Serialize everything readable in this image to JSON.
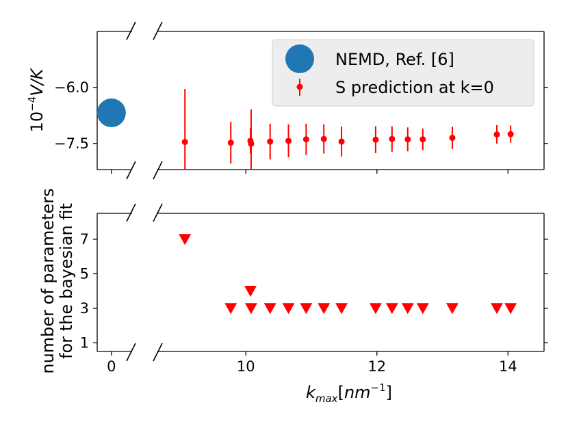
{
  "chart_data": [
    {
      "type": "scatter",
      "panel": "top",
      "ylabel_prefix": "10",
      "ylabel_exponent": "−4",
      "ylabel_main": "V/K",
      "ylim": [
        -8.2,
        -4.5
      ],
      "yticks": [
        -6.0,
        -7.5
      ],
      "ytick_labels": [
        "−6.0",
        "−7.5"
      ],
      "series": [
        {
          "name": "NEMD, Ref. [6]",
          "color": "#1f77b4",
          "x": [
            0
          ],
          "y": [
            -6.68
          ]
        },
        {
          "name": "S prediction at k=0",
          "color": "#ff0000",
          "x": [
            9.07,
            9.77,
            10.07,
            10.08,
            10.37,
            10.65,
            10.92,
            11.19,
            11.46,
            11.98,
            12.23,
            12.47,
            12.7,
            13.15,
            13.83,
            14.04
          ],
          "y": [
            -7.46,
            -7.48,
            -7.43,
            -7.51,
            -7.45,
            -7.43,
            -7.39,
            -7.38,
            -7.45,
            -7.4,
            -7.38,
            -7.39,
            -7.39,
            -7.35,
            -7.26,
            -7.25
          ],
          "yerr": [
            1.42,
            0.56,
            0.34,
            0.92,
            0.48,
            0.44,
            0.42,
            0.39,
            0.4,
            0.36,
            0.34,
            0.32,
            0.29,
            0.3,
            0.25,
            0.23
          ]
        }
      ],
      "legend": {
        "location": "top-right",
        "entries": [
          "NEMD, Ref. [6]",
          "S prediction at k=0"
        ]
      }
    },
    {
      "type": "scatter",
      "panel": "bottom",
      "ylabel_line1": "number of parameters",
      "ylabel_line2": "for the bayesian fit",
      "xlabel_main": "k",
      "xlabel_sub": "max",
      "xlabel_bracket_open": "[",
      "xlabel_unit": "nm",
      "xlabel_unit_exp": "−1",
      "xlabel_bracket_close": "]",
      "ylim": [
        0.5,
        8.5
      ],
      "yticks": [
        1,
        3,
        5,
        7
      ],
      "ytick_labels": [
        "1",
        "3",
        "5",
        "7"
      ],
      "xticks_left": [
        0
      ],
      "xtick_labels_left": [
        "0"
      ],
      "xticks_right": [
        10,
        12,
        14
      ],
      "xtick_labels_right": [
        "10",
        "12",
        "14"
      ],
      "xlim_left": [
        -0.45,
        0.65
      ],
      "xlim_right": [
        8.65,
        14.55
      ],
      "series": [
        {
          "name": "number of parameters",
          "color": "#ff0000",
          "marker": "triangle-down",
          "x": [
            9.07,
            9.77,
            10.07,
            10.08,
            10.37,
            10.65,
            10.92,
            11.19,
            11.46,
            11.98,
            12.23,
            12.47,
            12.7,
            13.15,
            13.83,
            14.04
          ],
          "y": [
            7,
            3,
            4,
            3,
            3,
            3,
            3,
            3,
            3,
            3,
            3,
            3,
            3,
            3,
            3,
            3
          ]
        }
      ]
    }
  ]
}
